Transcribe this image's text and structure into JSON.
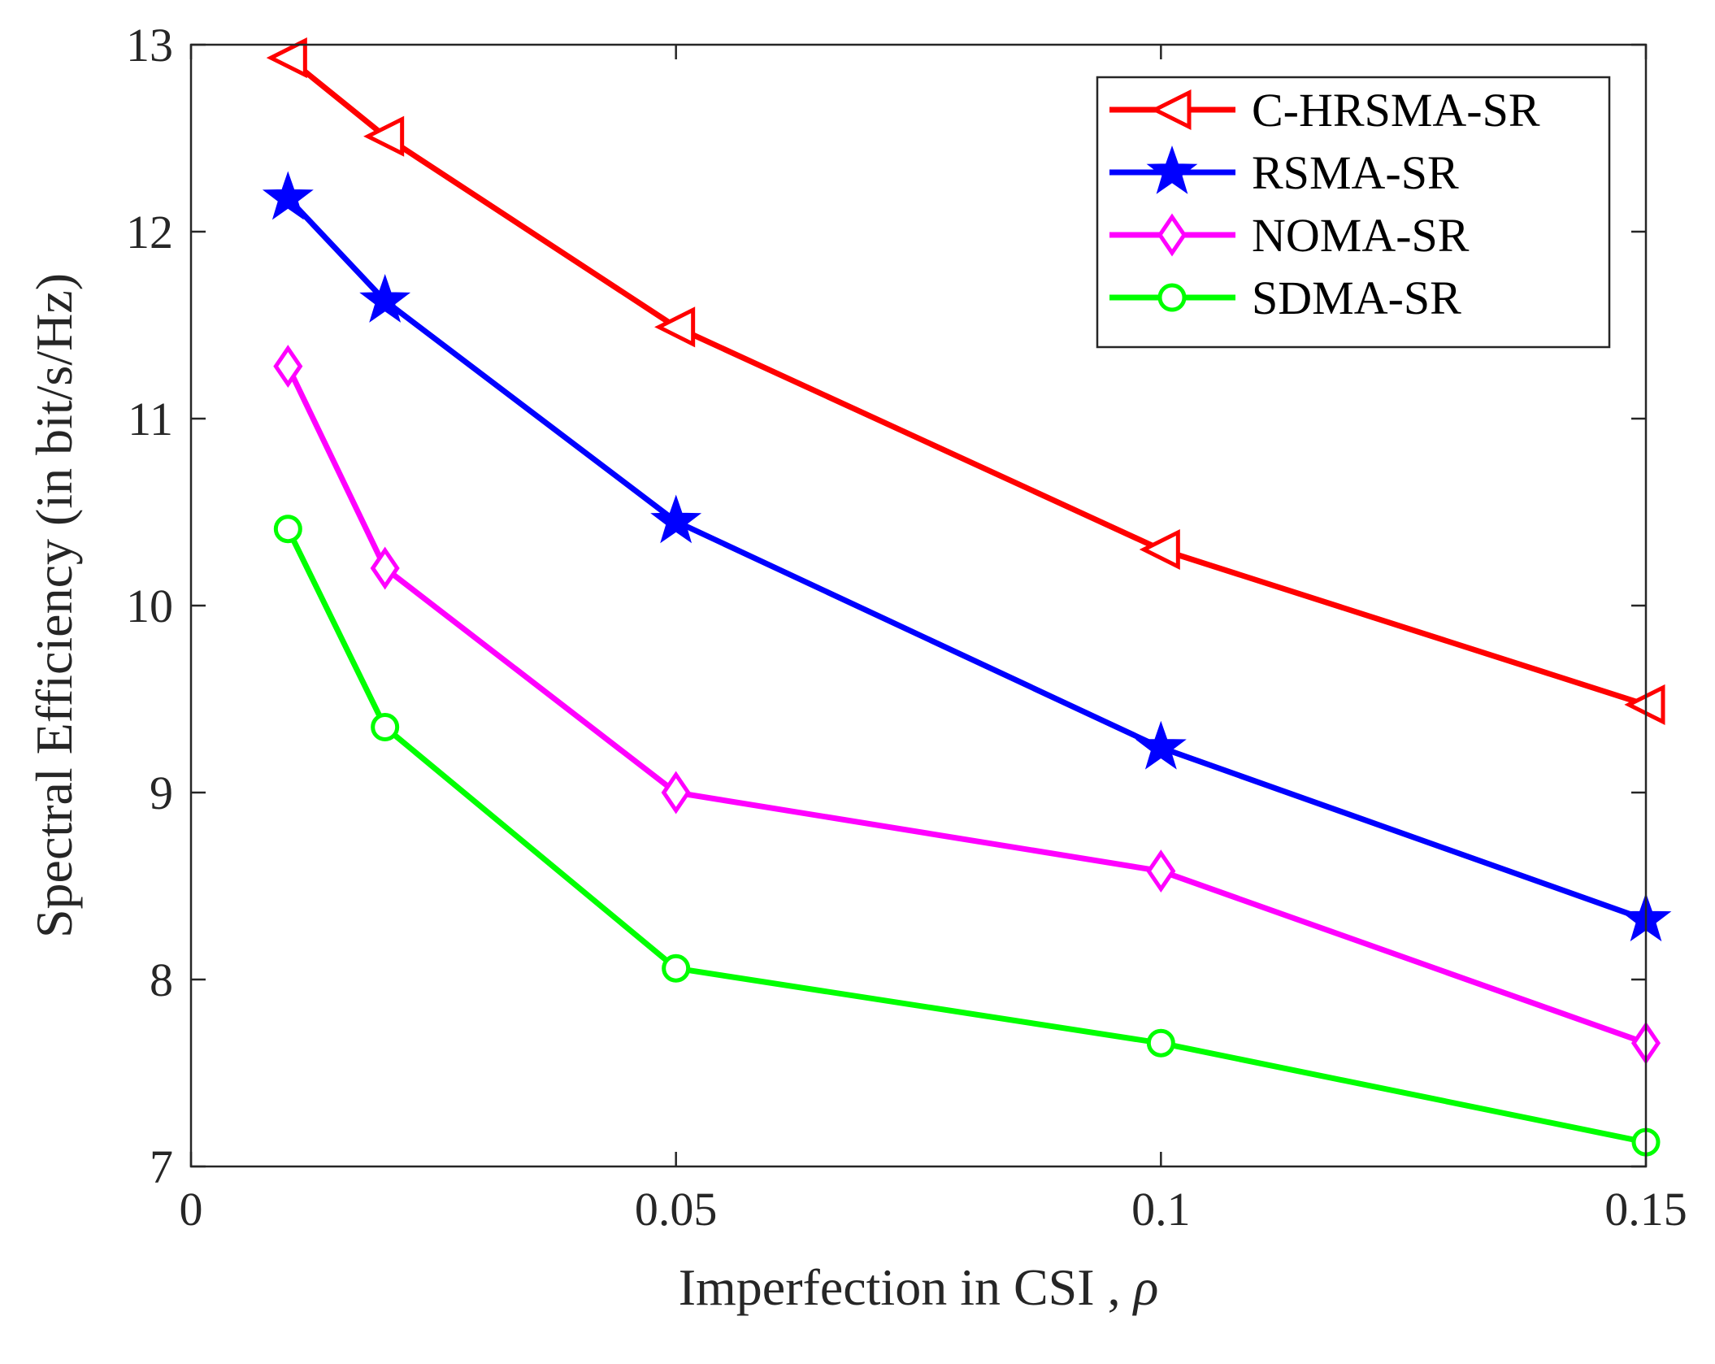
{
  "chart_data": {
    "type": "line",
    "xlabel": "Imperfection in CSI , ",
    "xlabel_symbol": "ρ",
    "ylabel": "Spectral Efficiency (in bit/s/Hz)",
    "xlim": [
      0,
      0.15
    ],
    "ylim": [
      7,
      13
    ],
    "x_ticks": [
      0,
      0.05,
      0.1,
      0.15
    ],
    "x_tick_labels": [
      "0",
      "0.05",
      "0.1",
      "0.15"
    ],
    "y_ticks": [
      7,
      8,
      9,
      10,
      11,
      12,
      13
    ],
    "y_tick_labels": [
      "7",
      "8",
      "9",
      "10",
      "11",
      "12",
      "13"
    ],
    "grid": false,
    "legend_position": "top-right",
    "x": [
      0.01,
      0.02,
      0.05,
      0.1,
      0.15
    ],
    "series": [
      {
        "name": "C-HRSMA-SR",
        "color": "#ff0000",
        "marker": "triangle-left",
        "values": [
          12.93,
          12.51,
          11.49,
          10.3,
          9.47
        ]
      },
      {
        "name": "RSMA-SR",
        "color": "#0000ff",
        "marker": "star",
        "values": [
          12.18,
          11.63,
          10.45,
          9.24,
          8.32
        ]
      },
      {
        "name": "NOMA-SR",
        "color": "#ff00ff",
        "marker": "diamond",
        "values": [
          11.28,
          10.2,
          9.0,
          8.58,
          7.66
        ]
      },
      {
        "name": "SDMA-SR",
        "color": "#00ff00",
        "marker": "circle",
        "values": [
          10.41,
          9.35,
          8.06,
          7.66,
          7.13
        ]
      }
    ]
  }
}
